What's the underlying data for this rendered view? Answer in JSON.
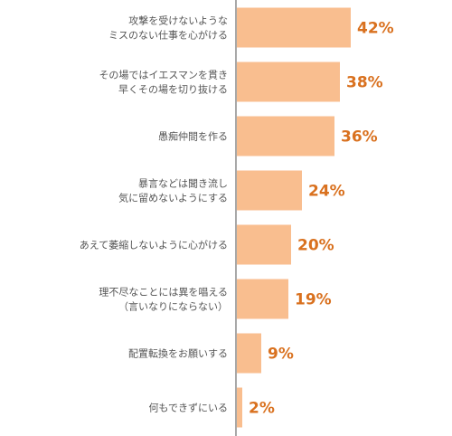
{
  "chart_data": {
    "type": "bar",
    "orientation": "horizontal",
    "title": "",
    "xlabel": "",
    "ylabel": "",
    "xlim": [
      0,
      42
    ],
    "grid": false,
    "legend": "none",
    "categories": [
      [
        "攻撃を受けないような",
        "ミスのない仕事を心がける"
      ],
      [
        "その場ではイエスマンを貫き",
        "早くその場を切り抜ける"
      ],
      [
        "愚痴仲間を作る"
      ],
      [
        "暴言などは聞き流し",
        "気に留めないようにする"
      ],
      [
        "あえて萎縮しないように心がける"
      ],
      [
        "理不尽なことには異を唱える",
        "（言いなりにならない）"
      ],
      [
        "配置転換をお願いする"
      ],
      [
        "何もできずにいる"
      ]
    ],
    "values": [
      42,
      38,
      36,
      24,
      20,
      19,
      9,
      2
    ],
    "value_labels": [
      "42%",
      "38%",
      "36%",
      "24%",
      "20%",
      "19%",
      "9%",
      "2%"
    ],
    "colors": {
      "bar": "#F9BE8F",
      "value_text": "#D9711F",
      "axis": "#8C8C8C",
      "category_text": "#555555"
    }
  }
}
